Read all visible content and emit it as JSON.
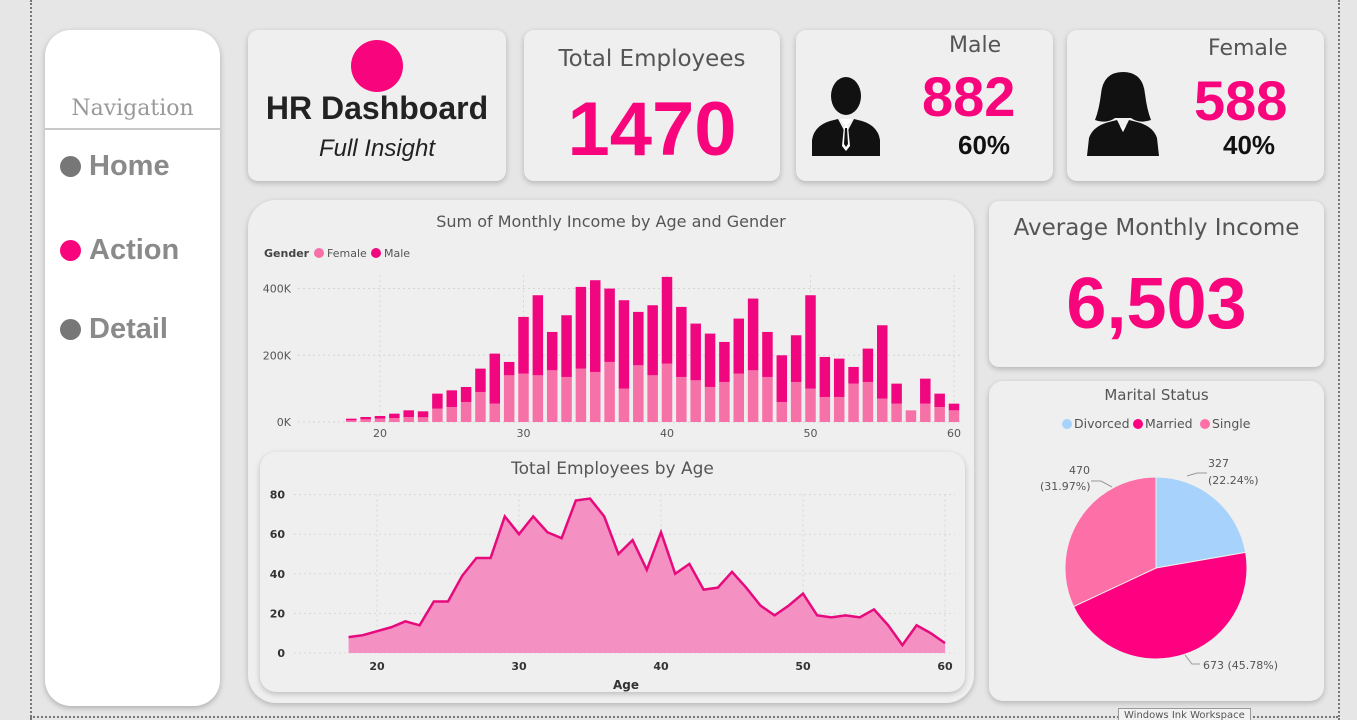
{
  "navigation": {
    "title": "Navigation",
    "items": [
      {
        "label": "Home",
        "active": false
      },
      {
        "label": "Action",
        "active": true
      },
      {
        "label": "Detail",
        "active": false
      }
    ]
  },
  "brand": {
    "title": "HR Dashboard",
    "subtitle": "Full Insight"
  },
  "total_employees": {
    "label": "Total Employees",
    "value": "1470"
  },
  "male": {
    "label": "Male",
    "value": "882",
    "percent": "60%",
    "icon": "male-person-icon"
  },
  "female": {
    "label": "Female",
    "value": "588",
    "percent": "40%",
    "icon": "female-person-icon"
  },
  "avg_income": {
    "label": "Average Monthly Income",
    "value": "6,503"
  },
  "colors": {
    "accent": "#f8057d",
    "female": "#f771a9",
    "male": "#f0077f",
    "divorced": "#a6d2fb",
    "married": "#fe0080",
    "single": "#fd6fa7"
  },
  "tooltip": "Windows Ink Workspace",
  "chart_data": [
    {
      "type": "bar",
      "stacked": true,
      "title": "Sum of Monthly Income by Age and Gender",
      "legend_title": "Gender",
      "legend_position": "top-left",
      "x": [
        18,
        19,
        20,
        21,
        22,
        23,
        24,
        25,
        26,
        27,
        28,
        29,
        30,
        31,
        32,
        33,
        34,
        35,
        36,
        37,
        38,
        39,
        40,
        41,
        42,
        43,
        44,
        45,
        46,
        47,
        48,
        49,
        50,
        51,
        52,
        53,
        54,
        55,
        56,
        57,
        58,
        59,
        60
      ],
      "series": [
        {
          "name": "Female",
          "values": [
            5,
            8,
            10,
            12,
            15,
            14,
            40,
            45,
            60,
            90,
            55,
            140,
            145,
            140,
            155,
            135,
            160,
            150,
            180,
            100,
            170,
            140,
            175,
            135,
            125,
            105,
            120,
            145,
            155,
            135,
            60,
            120,
            100,
            75,
            75,
            115,
            120,
            70,
            55,
            35,
            55,
            45,
            35
          ]
        },
        {
          "name": "Male",
          "values": [
            5,
            7,
            8,
            13,
            20,
            18,
            45,
            50,
            45,
            70,
            150,
            40,
            170,
            240,
            115,
            185,
            245,
            275,
            220,
            265,
            160,
            210,
            260,
            210,
            170,
            160,
            120,
            165,
            215,
            135,
            140,
            140,
            280,
            120,
            115,
            50,
            100,
            220,
            60,
            0,
            75,
            40,
            20
          ]
        }
      ],
      "ylim": [
        0,
        440000
      ],
      "yticks": [
        "0K",
        "200K",
        "400K"
      ],
      "xticks": [
        20,
        30,
        40,
        50,
        60
      ],
      "unit": 1000,
      "grid": true
    },
    {
      "type": "area",
      "title": "Total Employees by Age",
      "xlabel": "Age",
      "x": [
        18,
        19,
        20,
        21,
        22,
        23,
        24,
        25,
        26,
        27,
        28,
        29,
        30,
        31,
        32,
        33,
        34,
        35,
        36,
        37,
        38,
        39,
        40,
        41,
        42,
        43,
        44,
        45,
        46,
        47,
        48,
        49,
        50,
        51,
        52,
        53,
        54,
        55,
        56,
        57,
        58,
        59,
        60
      ],
      "values": [
        8,
        9,
        11,
        13,
        16,
        14,
        26,
        26,
        39,
        48,
        48,
        69,
        60,
        69,
        61,
        58,
        77,
        78,
        69,
        50,
        57,
        42,
        61,
        40,
        45,
        32,
        33,
        41,
        33,
        24,
        19,
        24,
        30,
        19,
        18,
        19,
        18,
        22,
        14,
        4,
        14,
        10,
        5
      ],
      "ylim": [
        0,
        80
      ],
      "yticks": [
        0,
        20,
        40,
        60,
        80
      ],
      "xticks": [
        20,
        30,
        40,
        50,
        60
      ],
      "grid": true
    },
    {
      "type": "pie",
      "title": "Marital Status",
      "legend_position": "top",
      "slices": [
        {
          "name": "Divorced",
          "value": 327,
          "label_count": "327",
          "label_pct": "(22.24%)"
        },
        {
          "name": "Married",
          "value": 673,
          "label": "673 (45.78%)"
        },
        {
          "name": "Single",
          "value": 470,
          "label_count": "470",
          "label_pct": "(31.97%)"
        }
      ]
    }
  ]
}
